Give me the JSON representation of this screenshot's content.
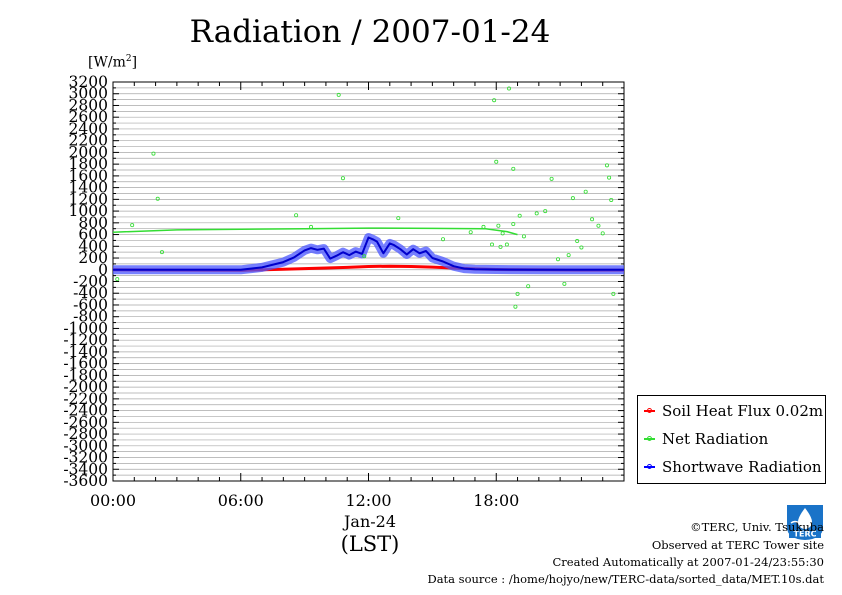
{
  "title": "Radiation / 2007-01-24",
  "unit": {
    "prefix": "[W/m",
    "sup": "2",
    "suffix": "]"
  },
  "x_axis": {
    "tick_labels": [
      "00:00",
      "06:00",
      "12:00",
      "18:00"
    ],
    "date_label": "Jan-24",
    "tz_label": "(LST)"
  },
  "legend": [
    {
      "label": "Soil Heat Flux 0.02m",
      "color": "#ff0000"
    },
    {
      "label": "Net Radiation",
      "color": "#33dd33"
    },
    {
      "label": "Shortwave Radiation",
      "color": "#0000ff"
    }
  ],
  "footer": {
    "copyright": "©TERC, Univ. Tsukuba",
    "observed": "Observed at TERC Tower site",
    "created": "Created Automatically at 2007-01-24/23:55:30",
    "source": "Data source : /home/hojyo/new/TERC-data/sorted_data/MET.10s.dat"
  },
  "logo": {
    "text": "TERC"
  },
  "chart_data": {
    "type": "line",
    "title": "Radiation / 2007-01-24",
    "ylabel": "[W/m2]",
    "xlabel": "(LST)",
    "ylim": [
      -3600,
      3200
    ],
    "yticks": [
      3200,
      3000,
      2800,
      2600,
      2400,
      2200,
      2000,
      1800,
      1600,
      1400,
      1200,
      1000,
      800,
      600,
      400,
      200,
      0,
      -200,
      -400,
      -600,
      -800,
      -1000,
      -1200,
      -1400,
      -1600,
      -1800,
      -2000,
      -2200,
      -2400,
      -2600,
      -2800,
      -3000,
      -3200,
      -3400,
      -3600
    ],
    "xlim_hours": [
      0,
      24
    ],
    "xticks_hours": [
      0,
      6,
      12,
      18
    ],
    "grid": true,
    "legend_position": "bottom-right, outside plot",
    "series": [
      {
        "name": "Soil Heat Flux 0.02m",
        "color": "#ff0000",
        "x_hours": [
          0,
          3,
          6,
          8,
          9,
          10,
          11,
          12,
          13,
          14,
          15,
          16,
          17,
          18,
          20,
          22,
          24
        ],
        "values": [
          0,
          -5,
          -10,
          10,
          20,
          30,
          40,
          55,
          60,
          55,
          45,
          30,
          15,
          5,
          0,
          -5,
          -5
        ]
      },
      {
        "name": "Net Radiation",
        "color": "#33dd33",
        "x_hours": [
          0,
          3,
          6,
          9,
          12,
          15,
          17.5,
          18.5,
          19
        ],
        "values": [
          640,
          680,
          690,
          700,
          710,
          705,
          700,
          650,
          600
        ]
      },
      {
        "name": "Shortwave Radiation",
        "color": "#0000ff",
        "x_hours": [
          0,
          6,
          7,
          8,
          8.5,
          9,
          9.3,
          9.6,
          9.9,
          10.2,
          10.5,
          10.8,
          11.1,
          11.4,
          11.7,
          12,
          12.2,
          12.4,
          12.7,
          13,
          13.2,
          13.5,
          13.8,
          14.1,
          14.4,
          14.7,
          15,
          15.5,
          16,
          16.5,
          17,
          18,
          20,
          22,
          24
        ],
        "values": [
          0,
          0,
          40,
          130,
          210,
          330,
          370,
          340,
          360,
          190,
          240,
          300,
          250,
          310,
          270,
          550,
          520,
          480,
          280,
          450,
          420,
          350,
          260,
          350,
          280,
          320,
          200,
          140,
          60,
          20,
          10,
          5,
          0,
          0,
          0
        ]
      },
      {
        "name": "Net Radiation (scattered spikes)",
        "type": "scatter",
        "color": "#33dd33",
        "x_hours": [
          0.2,
          0.9,
          1.9,
          2.1,
          2.3,
          8.6,
          9.3,
          10.6,
          10.8,
          11.8,
          13.4,
          15.5,
          16.8,
          17.4,
          17.8,
          17.9,
          18.0,
          18.1,
          18.2,
          18.3,
          18.5,
          18.6,
          18.8,
          18.8,
          18.9,
          19.0,
          19.1,
          19.3,
          19.5,
          19.9,
          20.3,
          20.6,
          20.9,
          21.2,
          21.4,
          21.6,
          21.8,
          22.0,
          22.2,
          22.5,
          22.8,
          23.0,
          23.2,
          23.3,
          23.4,
          23.5
        ],
        "values": [
          -160,
          760,
          1980,
          1210,
          300,
          930,
          730,
          2980,
          1560,
          230,
          880,
          520,
          640,
          730,
          430,
          2890,
          1840,
          750,
          390,
          620,
          430,
          3090,
          1720,
          780,
          -630,
          -410,
          920,
          570,
          -280,
          960,
          1000,
          1550,
          180,
          -240,
          250,
          1220,
          490,
          380,
          1330,
          860,
          750,
          620,
          1780,
          1570,
          1190,
          -410
        ]
      }
    ]
  }
}
